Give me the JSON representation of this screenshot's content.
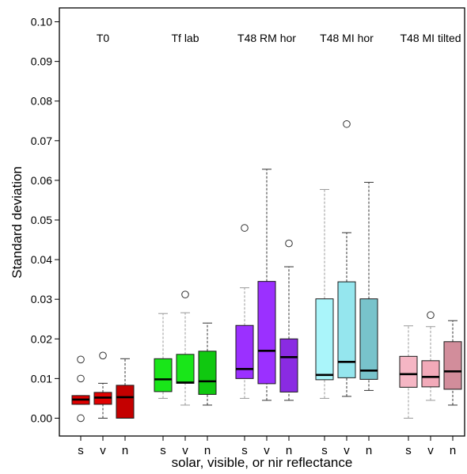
{
  "chart_data": {
    "type": "boxplot",
    "xlabel": "solar, visible, or nir reflectance",
    "ylabel": "Standard deviation",
    "ylim": [
      -0.0045,
      0.1035
    ],
    "y_ticks": [
      "0.00",
      "0.01",
      "0.02",
      "0.03",
      "0.04",
      "0.05",
      "0.06",
      "0.07",
      "0.08",
      "0.09",
      "0.10"
    ],
    "categories": [
      "s",
      "v",
      "n"
    ],
    "groups": [
      {
        "label": "T0",
        "boxes": [
          {
            "cat": "s",
            "color": "#e00000",
            "whisker_color": "#999999",
            "min": 0.0035,
            "q1": 0.0035,
            "median": 0.0047,
            "q3": 0.0057,
            "max": 0.0057,
            "outliers": [
              0.0,
              0.01,
              0.0148
            ]
          },
          {
            "cat": "v",
            "color": "#e00000",
            "whisker_color": "#333333",
            "min": 0.0,
            "q1": 0.0035,
            "median": 0.0052,
            "q3": 0.0065,
            "max": 0.0088,
            "outliers": [
              0.0158
            ]
          },
          {
            "cat": "n",
            "color": "#c40000",
            "whisker_color": "#333333",
            "min": 0.0,
            "q1": 0.0,
            "median": 0.0053,
            "q3": 0.0083,
            "max": 0.015,
            "outliers": []
          }
        ]
      },
      {
        "label": "Tf lab",
        "boxes": [
          {
            "cat": "s",
            "color": "#19e619",
            "whisker_color": "#999999",
            "min": 0.005,
            "q1": 0.0067,
            "median": 0.0098,
            "q3": 0.015,
            "max": 0.0264,
            "outliers": []
          },
          {
            "cat": "v",
            "color": "#19e619",
            "whisker_color": "#999999",
            "min": 0.0033,
            "q1": 0.0088,
            "median": 0.009,
            "q3": 0.0161,
            "max": 0.0266,
            "outliers": [
              0.0312
            ]
          },
          {
            "cat": "n",
            "color": "#10c810",
            "whisker_color": "#333333",
            "min": 0.0033,
            "q1": 0.006,
            "median": 0.0093,
            "q3": 0.0169,
            "max": 0.024,
            "outliers": []
          }
        ]
      },
      {
        "label": "T48 RM hor",
        "boxes": [
          {
            "cat": "s",
            "color": "#9b30ff",
            "whisker_color": "#999999",
            "min": 0.005,
            "q1": 0.01,
            "median": 0.0124,
            "q3": 0.0234,
            "max": 0.0329,
            "outliers": [
              0.048
            ]
          },
          {
            "cat": "v",
            "color": "#9b30ff",
            "whisker_color": "#333333",
            "min": 0.0045,
            "q1": 0.0087,
            "median": 0.017,
            "q3": 0.0345,
            "max": 0.0628,
            "outliers": []
          },
          {
            "cat": "n",
            "color": "#8a2be2",
            "whisker_color": "#333333",
            "min": 0.0045,
            "q1": 0.0066,
            "median": 0.0154,
            "q3": 0.02,
            "max": 0.0382,
            "outliers": [
              0.0441
            ]
          }
        ]
      },
      {
        "label": "T48 MI hor",
        "boxes": [
          {
            "cat": "s",
            "color": "#aaf5fa",
            "whisker_color": "#999999",
            "min": 0.005,
            "q1": 0.0097,
            "median": 0.0109,
            "q3": 0.0301,
            "max": 0.0577,
            "outliers": []
          },
          {
            "cat": "v",
            "color": "#95e6ee",
            "whisker_color": "#333333",
            "min": 0.0055,
            "q1": 0.0102,
            "median": 0.0142,
            "q3": 0.0344,
            "max": 0.0468,
            "outliers": [
              0.0742
            ]
          },
          {
            "cat": "n",
            "color": "#78c3cb",
            "whisker_color": "#333333",
            "min": 0.007,
            "q1": 0.0098,
            "median": 0.012,
            "q3": 0.0301,
            "max": 0.0595,
            "outliers": []
          }
        ]
      },
      {
        "label": "T48 MI tilted",
        "boxes": [
          {
            "cat": "s",
            "color": "#f5b6c4",
            "whisker_color": "#999999",
            "min": 0.0,
            "q1": 0.0078,
            "median": 0.0111,
            "q3": 0.0156,
            "max": 0.0233,
            "outliers": []
          },
          {
            "cat": "v",
            "color": "#f2aab9",
            "whisker_color": "#999999",
            "min": 0.0045,
            "q1": 0.0079,
            "median": 0.0104,
            "q3": 0.0145,
            "max": 0.0231,
            "outliers": [
              0.026
            ]
          },
          {
            "cat": "n",
            "color": "#d28d9b",
            "whisker_color": "#333333",
            "min": 0.0033,
            "q1": 0.0073,
            "median": 0.0118,
            "q3": 0.0193,
            "max": 0.0246,
            "outliers": []
          }
        ]
      }
    ]
  }
}
